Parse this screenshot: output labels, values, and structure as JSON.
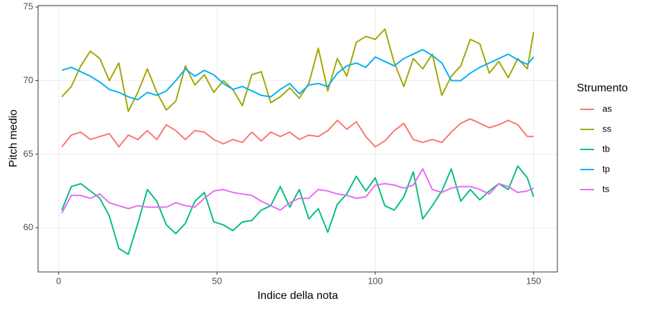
{
  "chart_data": {
    "type": "line",
    "x_label": "Indice della nota",
    "y_label": "Pitch medio",
    "legend_title": "Strumento",
    "legend_position": "right",
    "grid": true,
    "x": [
      1,
      4,
      7,
      10,
      13,
      16,
      19,
      22,
      25,
      28,
      31,
      34,
      37,
      40,
      43,
      46,
      49,
      52,
      55,
      58,
      61,
      64,
      67,
      70,
      73,
      76,
      79,
      82,
      85,
      88,
      91,
      94,
      97,
      100,
      103,
      106,
      109,
      112,
      115,
      118,
      121,
      124,
      127,
      130,
      133,
      136,
      139,
      142,
      145,
      148,
      150
    ],
    "xlim": [
      -6.5,
      157.5
    ],
    "xticks": [
      0,
      50,
      100,
      150
    ],
    "ylim": [
      57.0,
      75.1
    ],
    "yticks": [
      60,
      65,
      70,
      75
    ],
    "series": [
      {
        "name": "as",
        "color": "#F8766D",
        "values": [
          65.5,
          66.3,
          66.5,
          66.0,
          66.2,
          66.4,
          65.5,
          66.3,
          66.0,
          66.6,
          66.0,
          67.0,
          66.6,
          66.0,
          66.6,
          66.5,
          66.0,
          65.7,
          66.0,
          65.8,
          66.5,
          65.9,
          66.5,
          66.2,
          66.5,
          66.0,
          66.3,
          66.2,
          66.6,
          67.3,
          66.7,
          67.2,
          66.2,
          65.5,
          65.9,
          66.6,
          67.1,
          66.0,
          65.8,
          66.0,
          65.8,
          66.5,
          67.1,
          67.4,
          67.1,
          66.8,
          67.0,
          67.3,
          67.0,
          66.2,
          66.2
        ]
      },
      {
        "name": "ss",
        "color": "#A3A500",
        "values": [
          68.9,
          69.6,
          71.0,
          72.0,
          71.5,
          70.0,
          71.2,
          67.9,
          69.2,
          70.8,
          69.2,
          68.0,
          68.6,
          71.0,
          69.7,
          70.4,
          69.2,
          70.0,
          69.4,
          68.3,
          70.4,
          70.6,
          68.5,
          68.9,
          69.5,
          68.8,
          69.8,
          72.2,
          69.3,
          71.5,
          70.3,
          72.6,
          73.0,
          72.8,
          73.5,
          71.2,
          69.6,
          71.5,
          70.8,
          71.8,
          69.0,
          70.3,
          71.0,
          72.8,
          72.5,
          70.5,
          71.3,
          70.2,
          71.5,
          70.8,
          73.3
        ]
      },
      {
        "name": "tb",
        "color": "#00BF7D",
        "values": [
          61.2,
          62.8,
          63.0,
          62.5,
          62.0,
          60.8,
          58.6,
          58.2,
          60.3,
          62.6,
          61.8,
          60.2,
          59.6,
          60.3,
          61.8,
          62.4,
          60.4,
          60.2,
          59.8,
          60.4,
          60.5,
          61.2,
          61.5,
          62.8,
          61.4,
          62.6,
          60.6,
          61.3,
          59.7,
          61.6,
          62.3,
          63.5,
          62.5,
          63.4,
          61.5,
          61.2,
          62.1,
          63.8,
          60.6,
          61.5,
          62.5,
          64.0,
          61.8,
          62.6,
          61.9,
          62.5,
          63.0,
          62.6,
          64.2,
          63.4,
          62.1
        ]
      },
      {
        "name": "tp",
        "color": "#00B0F6",
        "values": [
          70.7,
          70.9,
          70.6,
          70.3,
          69.9,
          69.4,
          69.2,
          68.9,
          68.7,
          69.2,
          69.0,
          69.3,
          70.0,
          70.8,
          70.3,
          70.7,
          70.4,
          69.8,
          69.4,
          69.6,
          69.3,
          69.0,
          68.9,
          69.4,
          69.8,
          69.1,
          69.7,
          69.8,
          69.6,
          70.5,
          71.0,
          71.2,
          70.9,
          71.6,
          71.3,
          71.0,
          71.5,
          71.8,
          72.1,
          71.7,
          71.2,
          70.0,
          70.0,
          70.5,
          70.9,
          71.2,
          71.5,
          71.8,
          71.4,
          71.1,
          71.6
        ]
      },
      {
        "name": "ts",
        "color": "#E76BF3",
        "values": [
          61.0,
          62.2,
          62.2,
          62.0,
          62.3,
          61.7,
          61.5,
          61.3,
          61.5,
          61.4,
          61.4,
          61.4,
          61.7,
          61.5,
          61.4,
          62.0,
          62.5,
          62.6,
          62.4,
          62.3,
          62.2,
          61.8,
          61.5,
          61.2,
          61.7,
          62.0,
          62.0,
          62.6,
          62.5,
          62.3,
          62.2,
          62.0,
          62.1,
          62.9,
          63.0,
          62.9,
          62.7,
          62.9,
          64.0,
          62.6,
          62.4,
          62.7,
          62.8,
          62.8,
          62.6,
          62.3,
          63.0,
          62.8,
          62.4,
          62.5,
          62.7
        ]
      }
    ]
  }
}
